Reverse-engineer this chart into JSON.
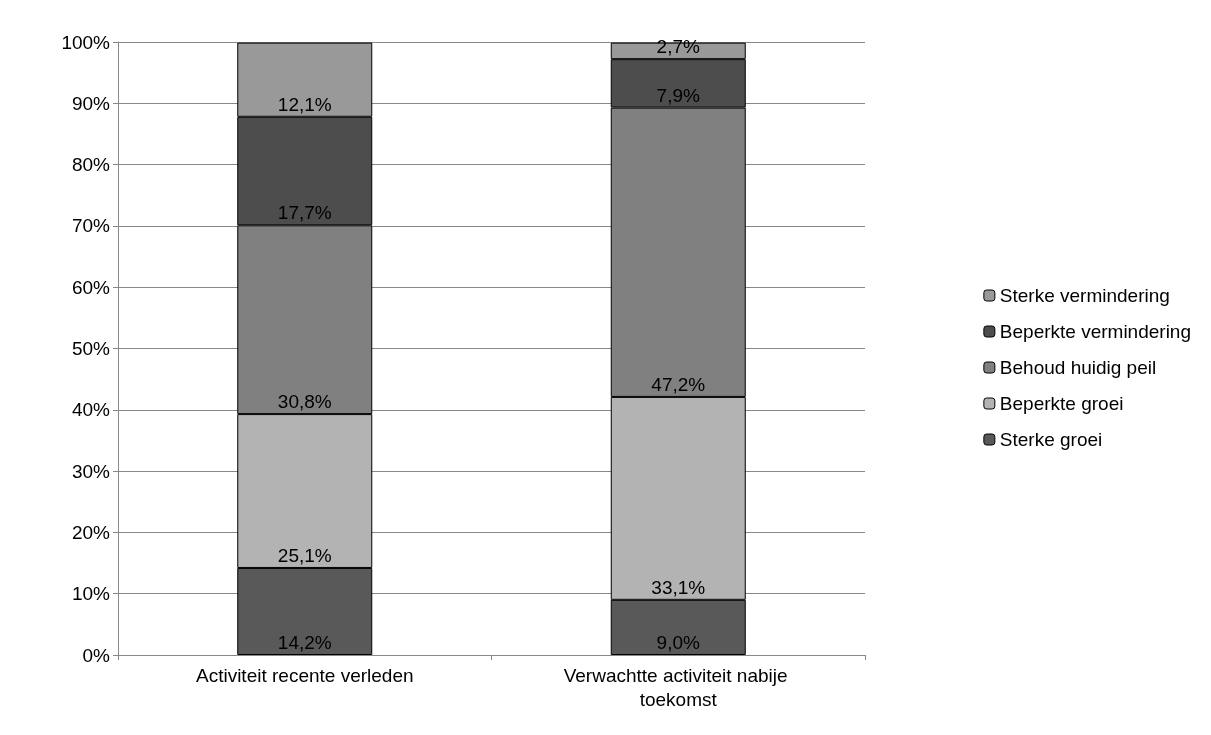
{
  "chart_data": {
    "type": "bar",
    "stacked": true,
    "categories": [
      "Activiteit recente verleden",
      "Verwachtte activiteit nabije toekomst"
    ],
    "series": [
      {
        "name": "Sterke groei",
        "color": "#595959",
        "values": [
          14.2,
          9.0
        ],
        "value_labels": [
          "14,2%",
          "9,0%"
        ]
      },
      {
        "name": "Beperkte groei",
        "color": "#b3b3b3",
        "values": [
          25.1,
          33.1
        ],
        "value_labels": [
          "25,1%",
          "33,1%"
        ]
      },
      {
        "name": "Behoud huidig peil",
        "color": "#808080",
        "values": [
          30.8,
          47.2
        ],
        "value_labels": [
          "30,8%",
          "47,2%"
        ]
      },
      {
        "name": "Beperkte vermindering",
        "color": "#4d4d4d",
        "values": [
          17.7,
          7.9
        ],
        "value_labels": [
          "17,7%",
          "7,9%"
        ]
      },
      {
        "name": "Sterke vermindering",
        "color": "#999999",
        "values": [
          12.1,
          2.7
        ],
        "value_labels": [
          "12,1%",
          "2,7%"
        ]
      }
    ],
    "ylim": [
      0,
      100
    ],
    "yticks": [
      {
        "value": 0,
        "label": "0%"
      },
      {
        "value": 10,
        "label": "10%"
      },
      {
        "value": 20,
        "label": "20%"
      },
      {
        "value": 30,
        "label": "30%"
      },
      {
        "value": 40,
        "label": "40%"
      },
      {
        "value": 50,
        "label": "50%"
      },
      {
        "value": 60,
        "label": "60%"
      },
      {
        "value": 70,
        "label": "70%"
      },
      {
        "value": 80,
        "label": "80%"
      },
      {
        "value": 90,
        "label": "90%"
      },
      {
        "value": 100,
        "label": "100%"
      }
    ],
    "grid": "y",
    "legend": "right"
  }
}
